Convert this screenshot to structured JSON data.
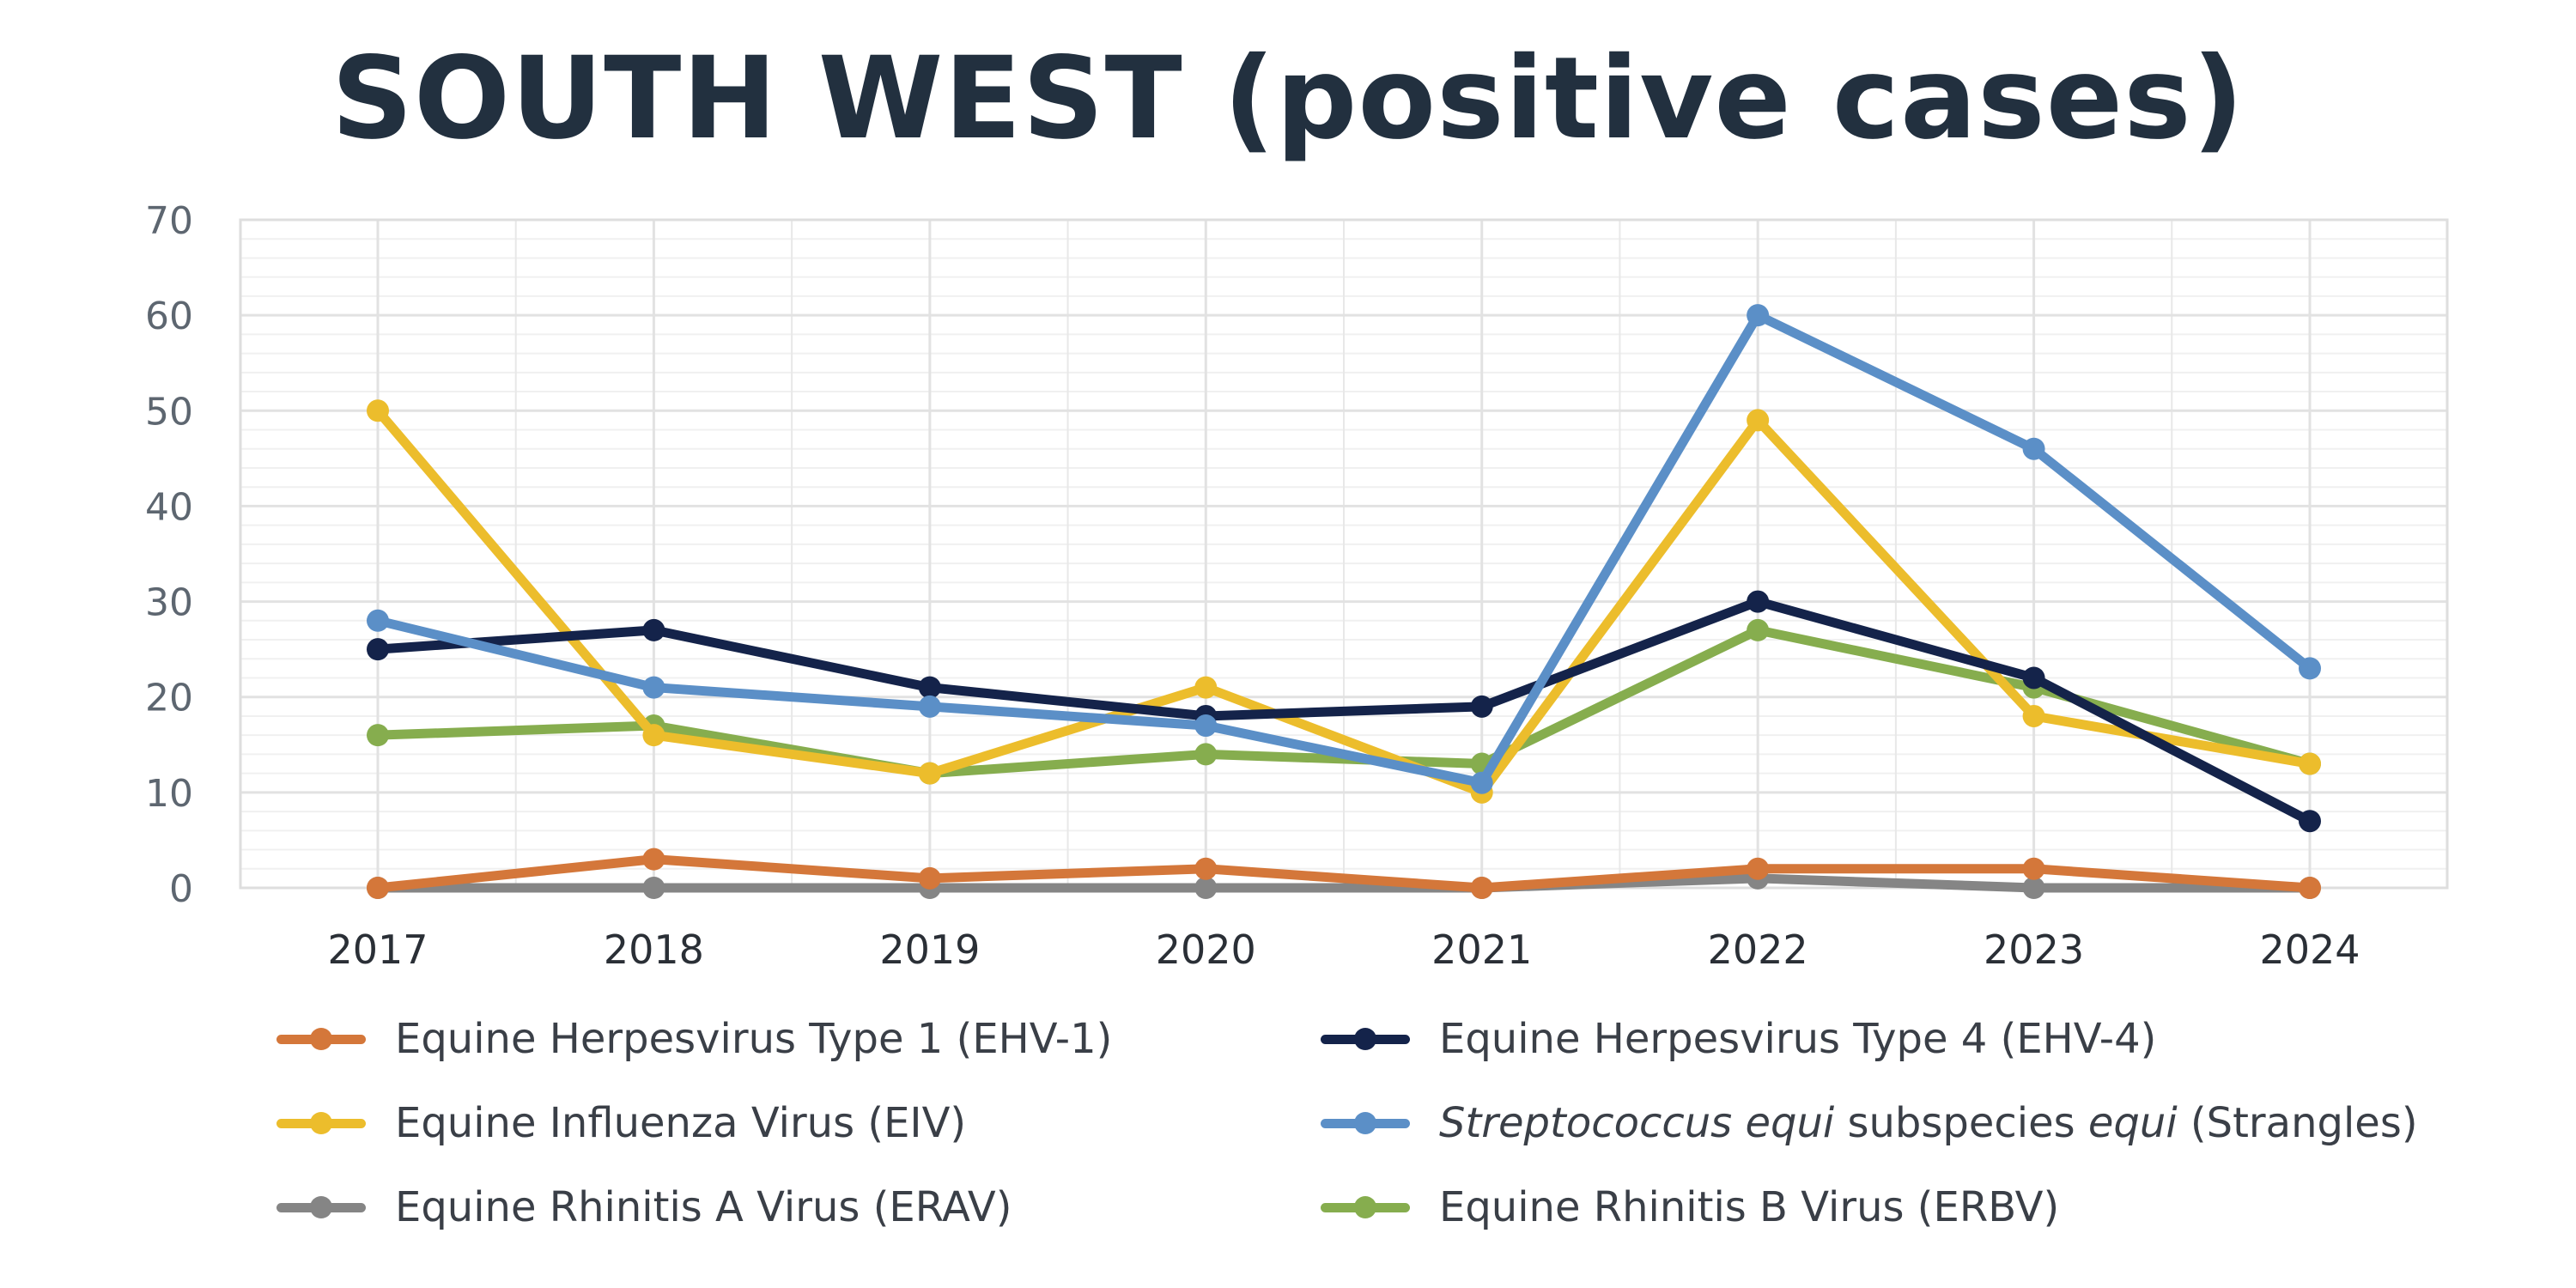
{
  "chart_data": {
    "type": "line",
    "title": "SOUTH WEST (positive cases)",
    "xlabel": "",
    "ylabel": "",
    "categories": [
      "2017",
      "2018",
      "2019",
      "2020",
      "2021",
      "2022",
      "2023",
      "2024"
    ],
    "ylim": [
      0,
      70
    ],
    "yticks": [
      0,
      10,
      20,
      30,
      40,
      50,
      60,
      70
    ],
    "grid": true,
    "legend_position": "bottom",
    "series": [
      {
        "name": "Equine Herpesvirus Type 1 (EHV-1)",
        "color": "#d4773a",
        "values": [
          0,
          3,
          1,
          2,
          0,
          2,
          2,
          0
        ]
      },
      {
        "name": "Equine Herpesvirus Type 4 (EHV-4)",
        "color": "#14234a",
        "values": [
          25,
          27,
          21,
          18,
          19,
          30,
          22,
          7
        ]
      },
      {
        "name": "Equine Influenza Virus (EIV)",
        "color": "#ecbd2c",
        "values": [
          50,
          16,
          12,
          21,
          10,
          49,
          18,
          13
        ]
      },
      {
        "name": "Streptococcus equi subspecies equi (Strangles)",
        "name_parts": [
          {
            "text": "Streptococcus equi",
            "italic": true
          },
          {
            "text": " subspecies ",
            "italic": false
          },
          {
            "text": "equi",
            "italic": true
          },
          {
            "text": " (Strangles)",
            "italic": false
          }
        ],
        "color": "#5b8fc7",
        "values": [
          28,
          21,
          19,
          17,
          11,
          60,
          46,
          23
        ]
      },
      {
        "name": "Equine Rhinitis A Virus (ERAV)",
        "color": "#858585",
        "values": [
          0,
          0,
          0,
          0,
          0,
          1,
          0,
          0
        ]
      },
      {
        "name": "Equine Rhinitis B Virus (ERBV)",
        "color": "#86ad4e",
        "values": [
          16,
          17,
          12,
          14,
          13,
          27,
          21,
          13
        ]
      }
    ]
  }
}
